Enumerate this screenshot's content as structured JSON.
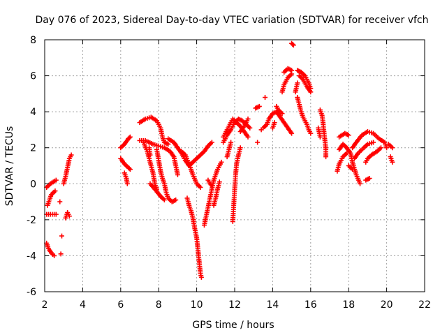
{
  "chart_data": {
    "type": "scatter",
    "title": "Day 076 of 2023, Sidereal Day-to-day VTEC variation (SDTVAR) for receiver vfch",
    "xlabel": "GPS time / hours",
    "ylabel": "SDTVAR / TECUs",
    "xlim": [
      2,
      22
    ],
    "ylim": [
      -6,
      8
    ],
    "xticks": [
      "2",
      "4",
      "6",
      "8",
      "10",
      "12",
      "14",
      "16",
      "18",
      "20",
      "22"
    ],
    "yticks": [
      "-6",
      "-4",
      "-2",
      "0",
      "2",
      "4",
      "6",
      "8"
    ],
    "grid": true,
    "marker": "+",
    "series": [
      {
        "name": "SDTVAR",
        "color": "#ff0000",
        "segments": [
          [
            [
              2.1,
              -3.3
            ],
            [
              2.2,
              -3.6
            ],
            [
              2.35,
              -3.85
            ],
            [
              2.5,
              -4.0
            ]
          ],
          [
            [
              2.1,
              -1.7
            ],
            [
              2.3,
              -1.7
            ],
            [
              2.6,
              -1.7
            ]
          ],
          [
            [
              2.15,
              -1.2
            ],
            [
              2.35,
              -0.6
            ],
            [
              2.55,
              -0.4
            ]
          ],
          [
            [
              2.1,
              -0.2
            ],
            [
              2.3,
              0.0
            ],
            [
              2.6,
              0.2
            ]
          ],
          [
            [
              2.85,
              -3.9
            ]
          ],
          [
            [
              2.9,
              -2.9
            ]
          ],
          [
            [
              2.8,
              -1.0
            ]
          ],
          [
            [
              3.1,
              -1.9
            ],
            [
              3.2,
              -1.6
            ],
            [
              3.3,
              -1.8
            ]
          ],
          [
            [
              3.0,
              0.0
            ],
            [
              3.1,
              0.4
            ],
            [
              3.2,
              0.9
            ],
            [
              3.3,
              1.4
            ],
            [
              3.4,
              1.6
            ]
          ],
          [
            [
              6.0,
              2.0
            ],
            [
              6.2,
              2.2
            ],
            [
              6.4,
              2.5
            ],
            [
              6.5,
              2.6
            ]
          ],
          [
            [
              6.0,
              1.4
            ],
            [
              6.2,
              1.1
            ],
            [
              6.4,
              0.9
            ],
            [
              6.5,
              0.8
            ]
          ],
          [
            [
              6.2,
              0.6
            ],
            [
              6.3,
              0.3
            ],
            [
              6.35,
              0.0
            ]
          ],
          [
            [
              7.0,
              3.4
            ],
            [
              7.3,
              3.6
            ],
            [
              7.6,
              3.7
            ],
            [
              7.9,
              3.5
            ],
            [
              8.1,
              3.1
            ],
            [
              8.2,
              2.6
            ],
            [
              8.3,
              2.3
            ],
            [
              8.5,
              2.2
            ]
          ],
          [
            [
              7.0,
              2.4
            ],
            [
              7.3,
              2.4
            ],
            [
              7.7,
              2.2
            ],
            [
              8.0,
              2.1
            ],
            [
              8.3,
              2.0
            ],
            [
              8.6,
              1.8
            ],
            [
              8.8,
              1.5
            ],
            [
              8.9,
              1.0
            ],
            [
              9.0,
              0.5
            ]
          ],
          [
            [
              7.2,
              2.3
            ],
            [
              7.4,
              1.8
            ],
            [
              7.5,
              1.4
            ],
            [
              7.6,
              1.0
            ],
            [
              7.7,
              0.6
            ],
            [
              7.8,
              0.0
            ],
            [
              7.9,
              -0.3
            ]
          ],
          [
            [
              7.5,
              2.0
            ],
            [
              7.55,
              1.6
            ]
          ],
          [
            [
              7.55,
              0.0
            ],
            [
              7.8,
              -0.3
            ],
            [
              8.1,
              -0.7
            ],
            [
              8.3,
              -0.9
            ]
          ],
          [
            [
              7.9,
              1.9
            ],
            [
              8.0,
              1.3
            ],
            [
              8.1,
              0.7
            ],
            [
              8.2,
              0.3
            ],
            [
              8.3,
              0.0
            ],
            [
              8.4,
              -0.5
            ],
            [
              8.5,
              -0.8
            ],
            [
              8.7,
              -1.0
            ],
            [
              8.9,
              -0.9
            ]
          ],
          [
            [
              8.5,
              2.5
            ],
            [
              8.8,
              2.3
            ],
            [
              9.0,
              2.0
            ],
            [
              9.2,
              1.7
            ],
            [
              9.4,
              1.3
            ],
            [
              9.6,
              1.0
            ],
            [
              9.8,
              1.2
            ],
            [
              10.0,
              1.4
            ],
            [
              10.2,
              1.6
            ],
            [
              10.4,
              1.8
            ],
            [
              10.6,
              2.1
            ],
            [
              10.8,
              2.3
            ]
          ],
          [
            [
              9.2,
              1.8
            ],
            [
              9.4,
              1.6
            ],
            [
              9.6,
              1.1
            ],
            [
              9.8,
              0.5
            ],
            [
              10.0,
              0.0
            ],
            [
              10.2,
              -0.2
            ]
          ],
          [
            [
              9.5,
              -0.8
            ],
            [
              9.6,
              -1.2
            ],
            [
              9.7,
              -1.5
            ],
            [
              9.8,
              -1.9
            ],
            [
              9.9,
              -2.5
            ],
            [
              10.0,
              -3.0
            ],
            [
              10.05,
              -3.5
            ],
            [
              10.1,
              -4.0
            ],
            [
              10.15,
              -4.5
            ],
            [
              10.2,
              -5.0
            ],
            [
              10.25,
              -5.2
            ]
          ],
          [
            [
              10.4,
              -2.3
            ],
            [
              10.5,
              -1.8
            ],
            [
              10.6,
              -1.3
            ],
            [
              10.7,
              -0.8
            ],
            [
              10.8,
              -0.3
            ],
            [
              10.9,
              0.2
            ],
            [
              11.0,
              0.5
            ],
            [
              11.1,
              0.8
            ],
            [
              11.2,
              1.0
            ],
            [
              11.3,
              1.2
            ]
          ],
          [
            [
              10.6,
              0.2
            ],
            [
              10.7,
              0.0
            ],
            [
              10.8,
              -0.1
            ]
          ],
          [
            [
              10.9,
              -1.2
            ],
            [
              11.0,
              -0.8
            ],
            [
              11.1,
              -0.3
            ],
            [
              11.2,
              0.1
            ]
          ],
          [
            [
              11.4,
              2.3
            ],
            [
              11.6,
              2.7
            ],
            [
              11.8,
              3.0
            ],
            [
              12.0,
              3.4
            ],
            [
              12.2,
              3.6
            ],
            [
              12.4,
              3.5
            ],
            [
              12.6,
              3.3
            ],
            [
              12.8,
              3.1
            ]
          ],
          [
            [
              11.4,
              2.6
            ],
            [
              11.7,
              3.2
            ],
            [
              11.9,
              3.6
            ],
            [
              12.1,
              3.4
            ],
            [
              12.3,
              3.2
            ],
            [
              12.5,
              2.9
            ],
            [
              12.7,
              2.6
            ]
          ],
          [
            [
              11.6,
              1.5
            ],
            [
              11.8,
              2.3
            ]
          ],
          [
            [
              11.9,
              -2.1
            ],
            [
              11.95,
              -1.2
            ],
            [
              12.0,
              -0.3
            ],
            [
              12.05,
              0.5
            ],
            [
              12.1,
              1.1
            ],
            [
              12.2,
              1.6
            ],
            [
              12.3,
              2.0
            ]
          ],
          [
            [
              12.3,
              2.9
            ],
            [
              12.5,
              3.2
            ],
            [
              12.7,
              3.6
            ]
          ],
          [
            [
              13.1,
              4.2
            ],
            [
              13.3,
              4.3
            ]
          ],
          [
            [
              13.2,
              2.3
            ]
          ],
          [
            [
              13.4,
              3.0
            ]
          ],
          [
            [
              13.5,
              3.1
            ],
            [
              13.7,
              3.3
            ],
            [
              13.8,
              3.6
            ],
            [
              14.0,
              3.9
            ],
            [
              14.2,
              4.0
            ],
            [
              14.4,
              3.7
            ],
            [
              14.6,
              3.4
            ],
            [
              14.8,
              3.1
            ],
            [
              15.0,
              2.8
            ]
          ],
          [
            [
              13.6,
              4.8
            ]
          ],
          [
            [
              14.0,
              3.1
            ],
            [
              14.1,
              3.4
            ]
          ],
          [
            [
              14.2,
              4.3
            ],
            [
              14.3,
              4.1
            ],
            [
              14.5,
              3.9
            ]
          ],
          [
            [
              14.5,
              5.1
            ],
            [
              14.6,
              5.5
            ],
            [
              14.8,
              5.9
            ],
            [
              15.0,
              6.1
            ]
          ],
          [
            [
              14.6,
              6.2
            ],
            [
              14.8,
              6.4
            ],
            [
              15.0,
              6.3
            ]
          ],
          [
            [
              15.0,
              7.8
            ],
            [
              15.1,
              7.7
            ]
          ],
          [
            [
              15.2,
              5.1
            ],
            [
              15.3,
              5.6
            ]
          ],
          [
            [
              15.3,
              6.3
            ],
            [
              15.5,
              6.2
            ],
            [
              15.7,
              6.0
            ],
            [
              15.9,
              5.6
            ],
            [
              16.0,
              5.3
            ]
          ],
          [
            [
              15.4,
              6.0
            ],
            [
              15.6,
              5.8
            ],
            [
              15.8,
              5.4
            ],
            [
              16.0,
              5.1
            ]
          ],
          [
            [
              15.3,
              4.8
            ],
            [
              15.4,
              4.4
            ],
            [
              15.5,
              4.0
            ],
            [
              15.6,
              3.7
            ],
            [
              15.7,
              3.5
            ],
            [
              15.8,
              3.3
            ],
            [
              15.9,
              3.0
            ],
            [
              16.0,
              2.8
            ]
          ],
          [
            [
              16.5,
              4.1
            ],
            [
              16.6,
              3.8
            ],
            [
              16.65,
              3.4
            ],
            [
              16.7,
              2.9
            ],
            [
              16.75,
              2.4
            ],
            [
              16.8,
              1.9
            ],
            [
              16.8,
              1.5
            ]
          ],
          [
            [
              16.4,
              3.1
            ],
            [
              16.5,
              2.6
            ]
          ],
          [
            [
              17.5,
              1.9
            ],
            [
              17.7,
              2.2
            ],
            [
              17.9,
              2.0
            ],
            [
              18.1,
              1.7
            ],
            [
              18.2,
              1.2
            ],
            [
              18.4,
              0.5
            ],
            [
              18.6,
              0.0
            ]
          ],
          [
            [
              17.4,
              0.7
            ],
            [
              17.5,
              1.1
            ],
            [
              17.7,
              1.5
            ],
            [
              17.9,
              1.7
            ]
          ],
          [
            [
              17.5,
              2.6
            ],
            [
              17.8,
              2.8
            ],
            [
              18.0,
              2.7
            ]
          ],
          [
            [
              18.0,
              1.0
            ],
            [
              18.2,
              0.8
            ]
          ],
          [
            [
              18.2,
              2.0
            ],
            [
              18.4,
              2.3
            ],
            [
              18.7,
              2.7
            ],
            [
              19.0,
              2.9
            ],
            [
              19.3,
              2.8
            ],
            [
              19.6,
              2.5
            ],
            [
              19.9,
              2.3
            ],
            [
              20.0,
              2.0
            ]
          ],
          [
            [
              18.3,
              1.4
            ],
            [
              18.5,
              1.7
            ],
            [
              18.8,
              2.0
            ],
            [
              19.0,
              2.2
            ],
            [
              19.3,
              2.3
            ]
          ],
          [
            [
              18.9,
              1.2
            ],
            [
              19.0,
              1.4
            ],
            [
              19.2,
              1.6
            ],
            [
              19.5,
              1.8
            ],
            [
              19.7,
              2.0
            ]
          ],
          [
            [
              18.9,
              0.2
            ],
            [
              19.1,
              0.3
            ]
          ],
          [
            [
              20.2,
              1.5
            ],
            [
              20.3,
              1.2
            ]
          ],
          [
            [
              20.1,
              2.2
            ],
            [
              20.3,
              2.0
            ]
          ]
        ]
      }
    ]
  }
}
